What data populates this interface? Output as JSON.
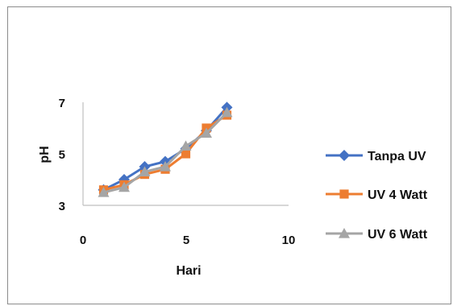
{
  "chart_data": {
    "type": "line",
    "title": "",
    "xlabel": "Hari",
    "ylabel": "pH",
    "xlim": [
      0,
      10
    ],
    "ylim": [
      3,
      7
    ],
    "x_ticks": [
      "0",
      "5",
      "10"
    ],
    "y_ticks": [
      "3",
      "5",
      "7"
    ],
    "grid": false,
    "legend_position": "right",
    "series": [
      {
        "name": "Tanpa UV",
        "color": "#4472c4",
        "marker": "diamond",
        "x": [
          1,
          2,
          3,
          4,
          5,
          6,
          7
        ],
        "y": [
          3.6,
          4.0,
          4.5,
          4.7,
          5.2,
          5.9,
          6.8
        ]
      },
      {
        "name": "UV 4 Watt",
        "color": "#ed7d31",
        "marker": "square",
        "x": [
          1,
          2,
          3,
          4,
          5,
          6,
          7
        ],
        "y": [
          3.6,
          3.8,
          4.2,
          4.4,
          5.0,
          6.0,
          6.5
        ]
      },
      {
        "name": "UV 6 Watt",
        "color": "#a5a5a5",
        "marker": "triangle",
        "x": [
          1,
          2,
          3,
          4,
          5,
          6,
          7
        ],
        "y": [
          3.5,
          3.7,
          4.3,
          4.5,
          5.3,
          5.8,
          6.6
        ]
      }
    ]
  }
}
